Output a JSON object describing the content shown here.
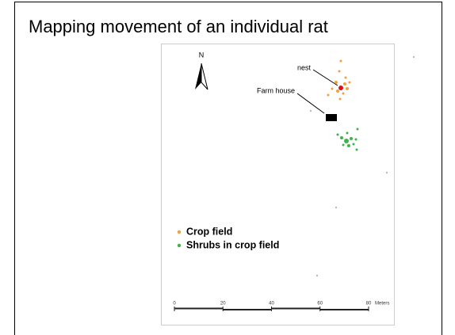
{
  "header": {
    "title": "Mapping movement of an individual rat"
  },
  "map": {
    "north_label": "N",
    "labels": {
      "nest": "nest",
      "farm_house": "Farm house"
    },
    "legend": [
      {
        "label": "Crop field",
        "color": "#f0a040"
      },
      {
        "label": "Shrubs in crop field",
        "color": "#3cb44a"
      }
    ],
    "scale": {
      "ticks": [
        "0",
        "20",
        "40",
        "60",
        "80"
      ],
      "unit": "Meters"
    }
  }
}
